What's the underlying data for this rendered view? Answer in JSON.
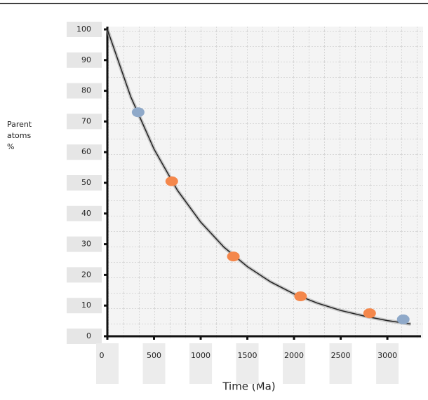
{
  "chart_data": {
    "type": "line",
    "ylabel": [
      "Parent",
      "atoms",
      "%"
    ],
    "xlabel": "Time (Ma)",
    "xlim": [
      0,
      3300
    ],
    "xticks": [
      0,
      500,
      1000,
      1500,
      2000,
      2500,
      3000
    ],
    "ylim": [
      0,
      100
    ],
    "yticks": [
      0,
      10,
      20,
      30,
      40,
      50,
      60,
      70,
      80,
      90,
      100
    ],
    "grid": true,
    "series": [
      {
        "type": "line",
        "color": "#222222",
        "x": [
          0,
          250,
          500,
          750,
          1000,
          1250,
          1500,
          1750,
          2000,
          2250,
          2500,
          2750,
          3000,
          3250
        ],
        "values": [
          100,
          78.1,
          61.0,
          47.6,
          37.2,
          29.0,
          22.7,
          17.7,
          13.8,
          10.8,
          8.4,
          6.6,
          5.1,
          4.0
        ]
      },
      {
        "type": "scatter",
        "color": "#f4874b",
        "x": [
          690,
          1350,
          2070,
          2810
        ],
        "values": [
          50.5,
          26,
          13,
          7.5
        ]
      },
      {
        "type": "scatter",
        "color": "#8fa9c9",
        "x": [
          330,
          3170
        ],
        "values": [
          73,
          5.5
        ]
      }
    ]
  }
}
